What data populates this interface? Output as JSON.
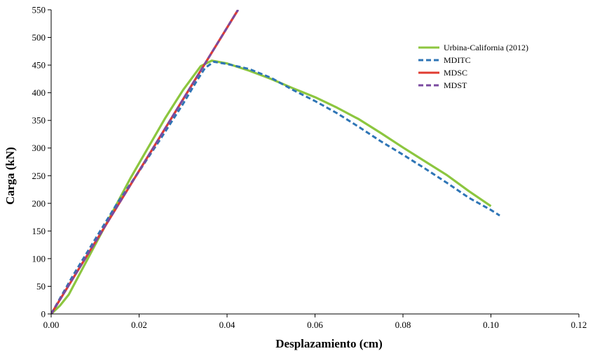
{
  "chart_data": {
    "type": "line",
    "title": "",
    "xlabel": "Desplazamiento (cm)",
    "ylabel": "Carga (kN)",
    "xlim": [
      0,
      0.12
    ],
    "ylim": [
      0,
      550
    ],
    "xticks": [
      0,
      0.02,
      0.04,
      0.06,
      0.08,
      0.1,
      0.12
    ],
    "xtick_labels": [
      "0.00",
      "0.02",
      "0.04",
      "0.06",
      "0.08",
      "0.10",
      "0.12"
    ],
    "yticks": [
      0,
      50,
      100,
      150,
      200,
      250,
      300,
      350,
      400,
      450,
      500,
      550
    ],
    "ytick_labels": [
      "0",
      "50",
      "100",
      "150",
      "200",
      "250",
      "300",
      "350",
      "400",
      "450",
      "500",
      "550"
    ],
    "grid": false,
    "legend_position": "top-right",
    "series": [
      {
        "name": "Urbina-California (2012)",
        "color": "#8cc63f",
        "style": "solid",
        "x": [
          0,
          0.002,
          0.004,
          0.006,
          0.008,
          0.01,
          0.014,
          0.018,
          0.022,
          0.026,
          0.03,
          0.034,
          0.0365,
          0.04,
          0.045,
          0.05,
          0.055,
          0.06,
          0.065,
          0.07,
          0.075,
          0.08,
          0.085,
          0.09,
          0.095,
          0.1
        ],
        "y": [
          0,
          15,
          35,
          65,
          95,
          125,
          185,
          245,
          300,
          355,
          405,
          448,
          458,
          453,
          440,
          425,
          408,
          392,
          373,
          352,
          327,
          301,
          276,
          251,
          222,
          195
        ]
      },
      {
        "name": "MDITC",
        "color": "#2e75b6",
        "style": "dashed",
        "x": [
          0,
          0.005,
          0.01,
          0.015,
          0.02,
          0.025,
          0.03,
          0.033,
          0.035,
          0.037,
          0.04,
          0.045,
          0.05,
          0.055,
          0.06,
          0.065,
          0.07,
          0.075,
          0.08,
          0.085,
          0.09,
          0.095,
          0.1,
          0.102
        ],
        "y": [
          0,
          70,
          135,
          200,
          258,
          318,
          380,
          420,
          445,
          456,
          452,
          443,
          427,
          405,
          385,
          363,
          338,
          312,
          288,
          263,
          237,
          210,
          188,
          178
        ]
      },
      {
        "name": "MDSC",
        "color": "#e03c31",
        "style": "solid",
        "x": [
          0,
          0.0425
        ],
        "y": [
          0,
          550
        ]
      },
      {
        "name": "MDST",
        "color": "#7a4aa0",
        "style": "dashed",
        "x": [
          0,
          0.0425
        ],
        "y": [
          0,
          550
        ]
      }
    ]
  }
}
